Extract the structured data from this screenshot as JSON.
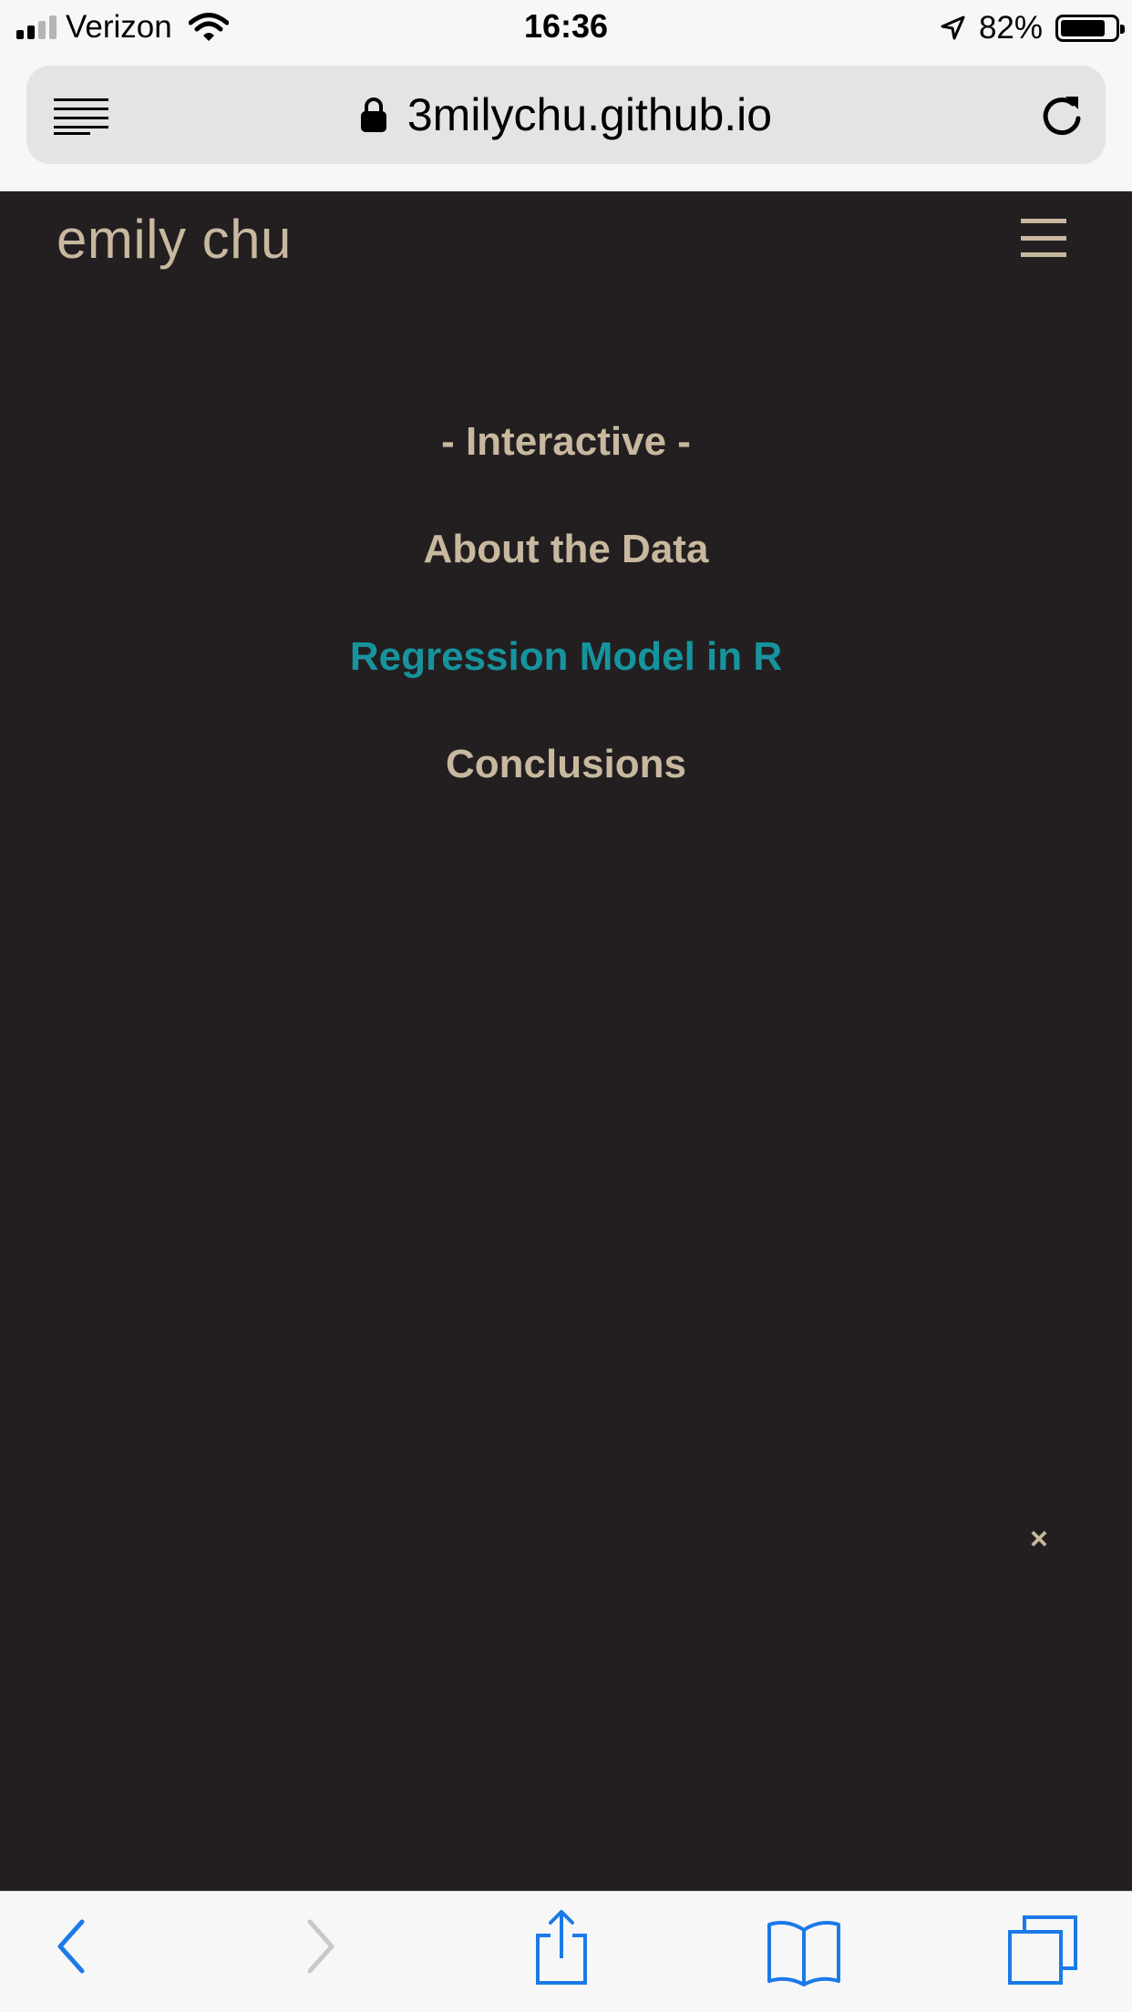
{
  "status_bar": {
    "carrier": "Verizon",
    "time": "16:36",
    "battery_percent": "82%",
    "battery_level": 0.82,
    "icons": [
      "signal-icon",
      "wifi-icon",
      "location-arrow-icon",
      "battery-icon"
    ]
  },
  "browser": {
    "url": "3milychu.github.io",
    "icons": [
      "reader-view-icon",
      "lock-icon",
      "reload-icon"
    ]
  },
  "site": {
    "brand": "emily chu",
    "menu_icon": "hamburger-icon",
    "nav": {
      "items": [
        {
          "label": "- Interactive -",
          "active": false
        },
        {
          "label": "About the Data",
          "active": false
        },
        {
          "label": "Regression Model in R",
          "active": true
        },
        {
          "label": "Conclusions",
          "active": false
        }
      ],
      "close_label": "×"
    },
    "colors": {
      "background": "#231f20",
      "text": "#c8b89f",
      "accent": "#16949e"
    }
  },
  "toolbar": {
    "icons": [
      "back-icon",
      "forward-icon",
      "share-icon",
      "bookmarks-icon",
      "tabs-icon"
    ]
  }
}
